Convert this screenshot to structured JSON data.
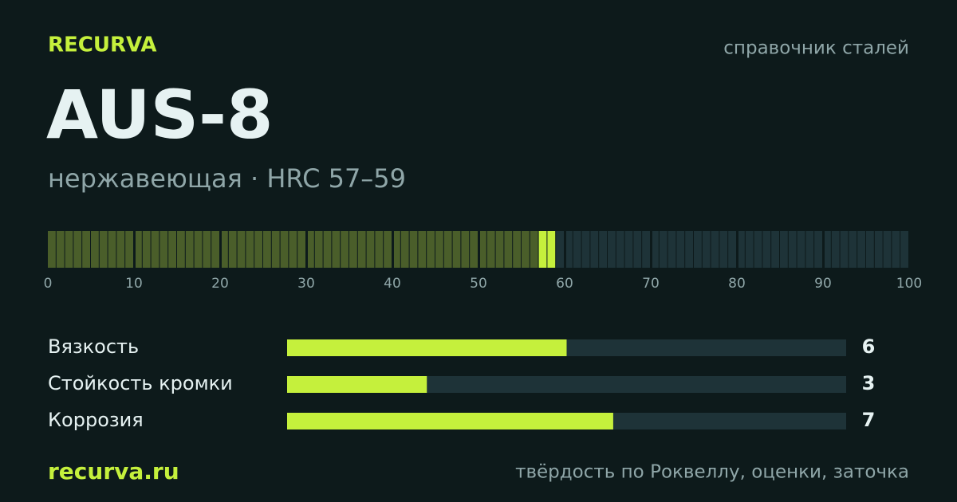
{
  "brand": "RECURVA",
  "tagline": "справочник сталей",
  "title": "AUS-8",
  "subtitle": "нержавеющая · HRC 57–59",
  "hardness": {
    "xlim": [
      0,
      100
    ],
    "xticks": [
      0,
      10,
      20,
      30,
      40,
      50,
      60,
      70,
      80,
      90,
      100
    ],
    "range": [
      57,
      59
    ]
  },
  "ratings": {
    "xlim": [
      0,
      12
    ],
    "color": "#c5f03c",
    "items": [
      {
        "label": "Вязкость",
        "value": 6
      },
      {
        "label": "Стойкость кромки",
        "value": 3
      },
      {
        "label": "Коррозия",
        "value": 7
      }
    ]
  },
  "footer": {
    "site": "recurva.ru",
    "note": "твёрдость по Роквеллу, оценки, заточка"
  }
}
